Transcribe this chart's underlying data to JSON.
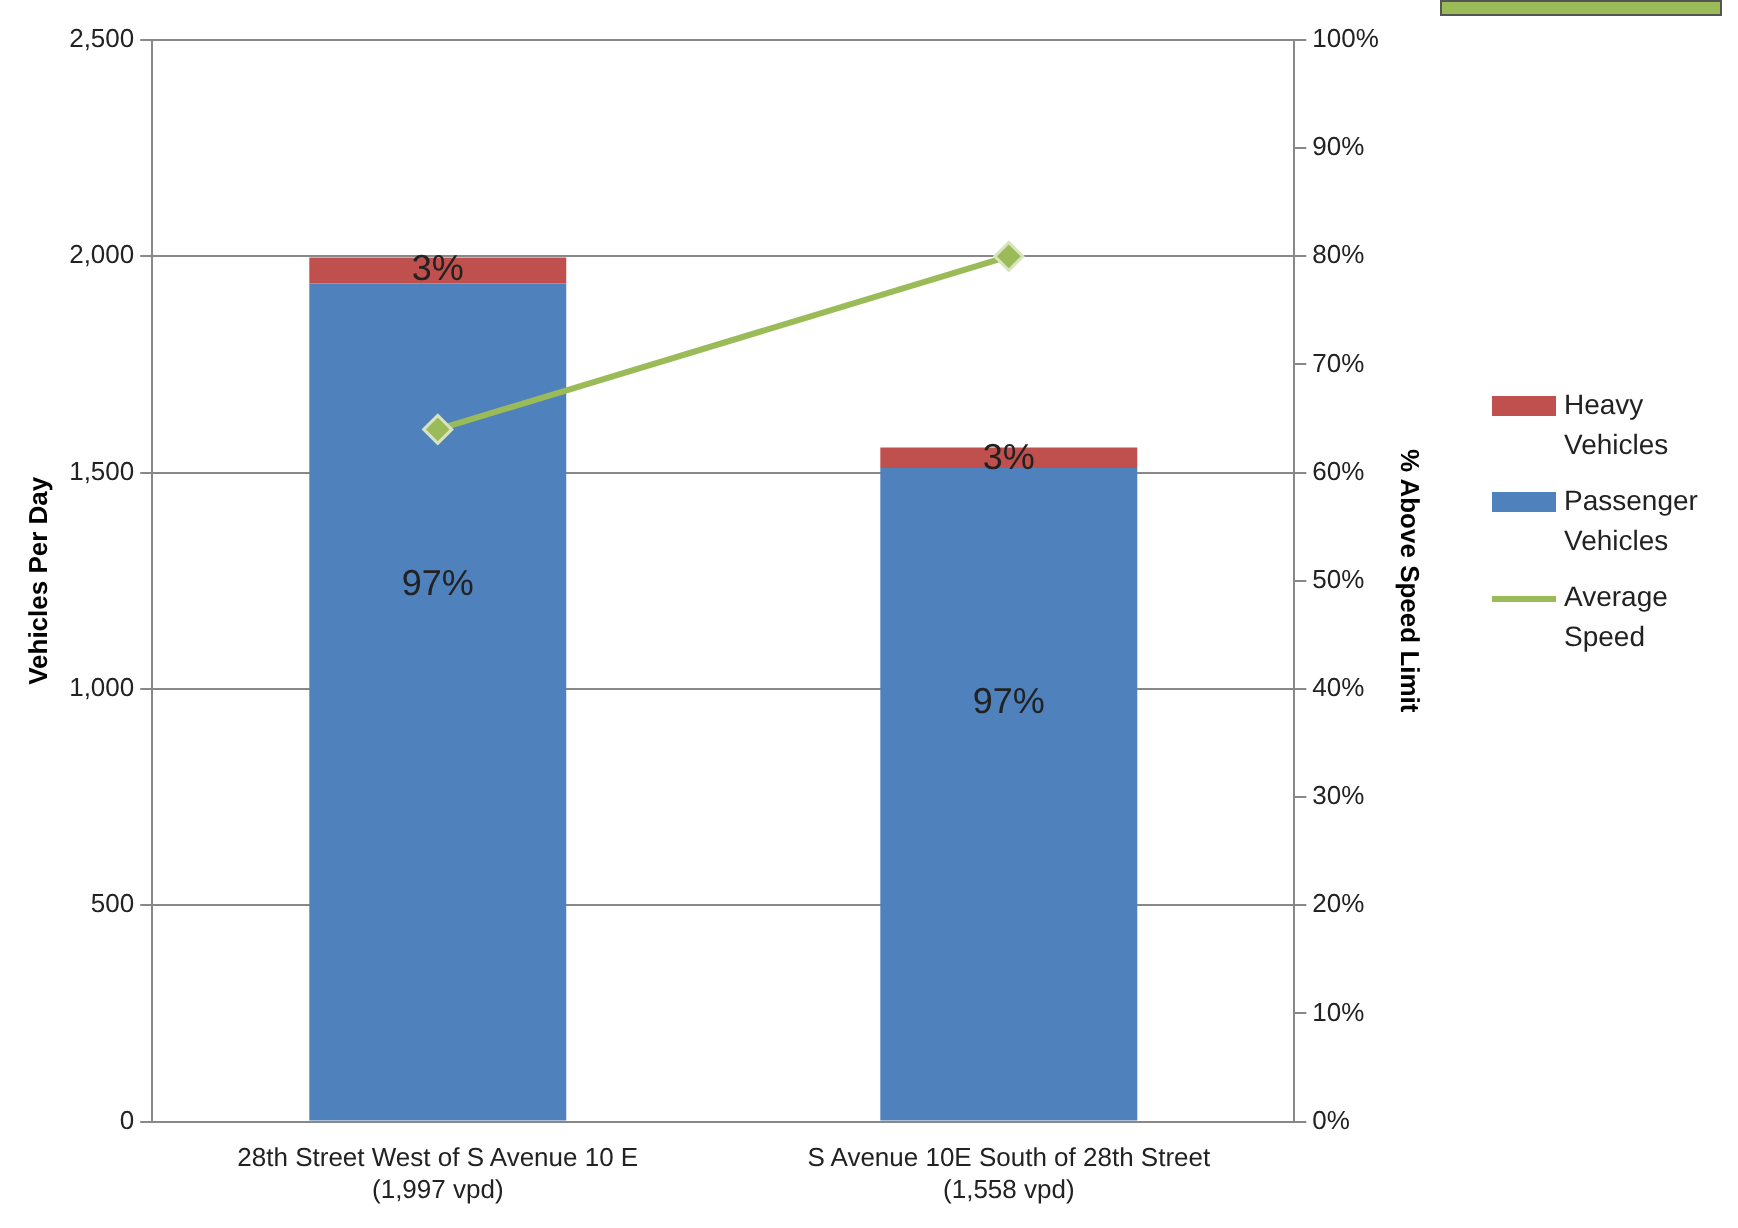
{
  "chart_data": {
    "type": "bar",
    "stacked": true,
    "categories": [
      "28th Street West of S Avenue 10 E\n(1,997 vpd)",
      "S Avenue 10E South of 28th Street\n(1,558 vpd)"
    ],
    "series": [
      {
        "name": "Passenger Vehicles",
        "color": "#4f81bd",
        "values": [
          1937,
          1511
        ]
      },
      {
        "name": "Heavy Vehicles",
        "color": "#c0504d",
        "values": [
          60,
          47
        ]
      },
      {
        "name": "Average Speed",
        "type": "line",
        "axis": "y2",
        "color": "#9bbb59",
        "values": [
          64,
          80
        ],
        "marker": "diamond"
      }
    ],
    "ylabel": "Vehicles Per Day",
    "y2label": "% Above Speed Limit",
    "ylim": [
      0,
      2500
    ],
    "yticks": [
      {
        "value": 0,
        "label": "0"
      },
      {
        "value": 500,
        "label": "500"
      },
      {
        "value": 1000,
        "label": "1,000"
      },
      {
        "value": 1500,
        "label": "1,500"
      },
      {
        "value": 2000,
        "label": "2,000"
      },
      {
        "value": 2500,
        "label": "2,500"
      }
    ],
    "y2lim": [
      0,
      100
    ],
    "y2ticks": [
      {
        "value": 0,
        "label": "0%"
      },
      {
        "value": 10,
        "label": "10%"
      },
      {
        "value": 20,
        "label": "20%"
      },
      {
        "value": 30,
        "label": "30%"
      },
      {
        "value": 40,
        "label": "40%"
      },
      {
        "value": 50,
        "label": "50%"
      },
      {
        "value": 60,
        "label": "60%"
      },
      {
        "value": 70,
        "label": "70%"
      },
      {
        "value": 80,
        "label": "80%"
      },
      {
        "value": 90,
        "label": "90%"
      },
      {
        "value": 100,
        "label": "100%"
      }
    ],
    "annotations": [
      "97%",
      "3%",
      "97%",
      "3%"
    ],
    "grid": "y",
    "legend": "right"
  }
}
